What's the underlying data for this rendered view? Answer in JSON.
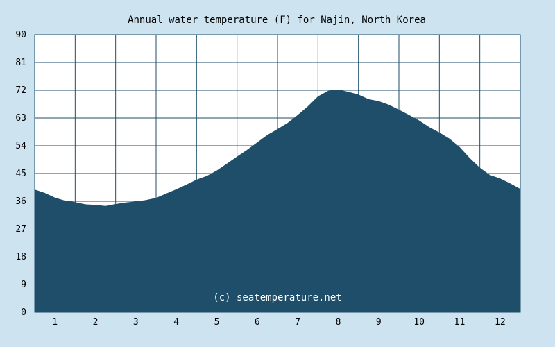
{
  "chart_data": {
    "type": "area",
    "title": "Annual water temperature (F) for Najin, North Korea",
    "watermark": "(c) seatemperature.net",
    "xlabel": "",
    "ylabel": "",
    "ylim": [
      0,
      90
    ],
    "xlim": [
      0.5,
      12.5
    ],
    "y_ticks": [
      "0",
      "9",
      "18",
      "27",
      "36",
      "45",
      "54",
      "63",
      "72",
      "81",
      "90"
    ],
    "x_ticks": [
      "1",
      "2",
      "3",
      "4",
      "5",
      "6",
      "7",
      "8",
      "9",
      "10",
      "11",
      "12"
    ],
    "grid": true,
    "colors": {
      "background": "#cde3ef",
      "plot_background": "#ffffff",
      "fill": "#1e4e69",
      "grid": "#1e4e69"
    },
    "x": [
      0.5,
      0.75,
      1.0,
      1.25,
      1.5,
      1.75,
      2.0,
      2.25,
      2.5,
      2.75,
      3.0,
      3.25,
      3.5,
      3.75,
      4.0,
      4.25,
      4.5,
      4.75,
      5.0,
      5.25,
      5.5,
      5.75,
      6.0,
      6.25,
      6.5,
      6.75,
      7.0,
      7.25,
      7.5,
      7.75,
      8.0,
      8.25,
      8.5,
      8.75,
      9.0,
      9.25,
      9.5,
      9.75,
      10.0,
      10.25,
      10.5,
      10.75,
      11.0,
      11.25,
      11.5,
      11.75,
      12.0,
      12.25,
      12.5
    ],
    "values": [
      39.8,
      38.7,
      37.2,
      36.2,
      35.7,
      35.0,
      34.8,
      34.5,
      35.1,
      35.6,
      35.9,
      36.4,
      37.1,
      38.5,
      39.9,
      41.4,
      43.0,
      44.2,
      46.0,
      48.2,
      50.5,
      52.7,
      55.1,
      57.5,
      59.4,
      61.4,
      64.0,
      66.8,
      70.0,
      71.8,
      72.2,
      71.5,
      70.6,
      69.1,
      68.5,
      67.3,
      65.7,
      64.0,
      62.2,
      60.0,
      58.3,
      56.3,
      53.6,
      50.0,
      46.9,
      44.5,
      43.4,
      41.8,
      40.0
    ]
  }
}
